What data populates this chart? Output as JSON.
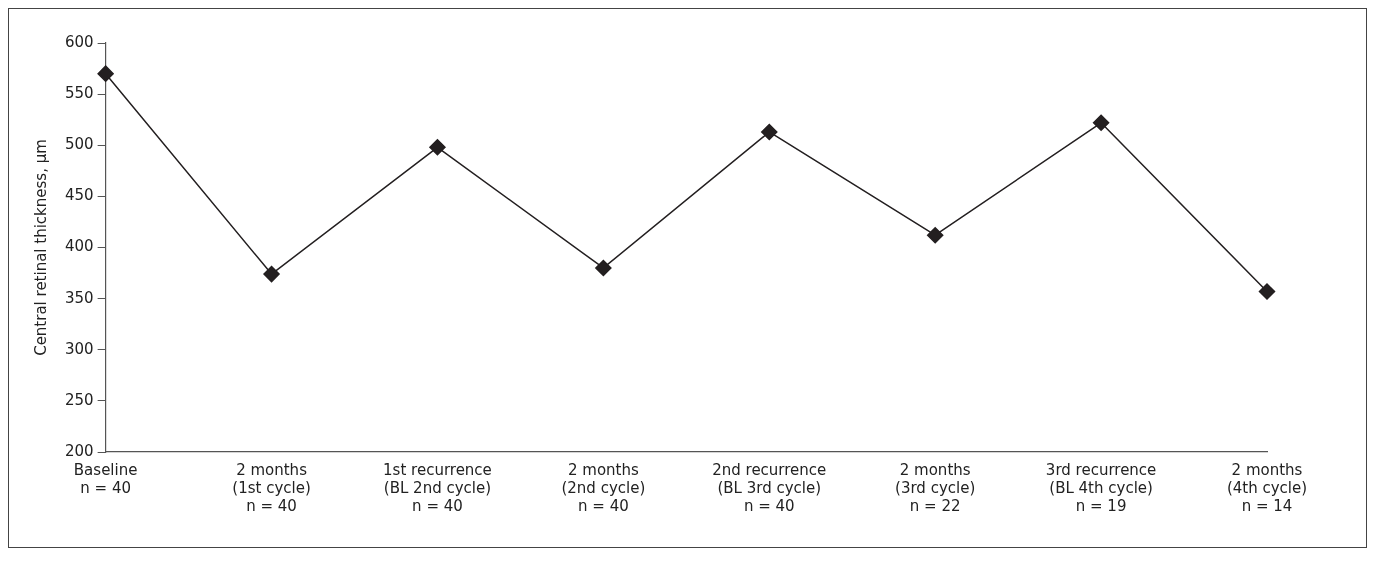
{
  "chart_data": {
    "type": "line",
    "ylabel": "Central retinal thickness, µm",
    "categories": [
      "Baseline\nn = 40",
      "2 months\n(1st cycle)\nn = 40",
      "1st recurrence\n(BL 2nd cycle)\nn = 40",
      "2 months\n(2nd cycle)\nn = 40",
      "2nd recurrence\n(BL 3rd cycle)\nn = 40",
      "2 months\n(3rd cycle)\nn = 22",
      "3rd recurrence\n(BL 4th cycle)\nn = 19",
      "2 months\n(4th cycle)\nn = 14"
    ],
    "series": [
      {
        "color": "#231f20",
        "values": [
          570,
          374,
          498,
          380,
          513,
          412,
          522,
          357
        ]
      }
    ],
    "ylim": [
      200,
      600
    ],
    "yticks": [
      200,
      250,
      300,
      350,
      400,
      450,
      500,
      550,
      600
    ],
    "grid": false,
    "legend": false,
    "marker": "diamond",
    "line_style": "solid"
  }
}
